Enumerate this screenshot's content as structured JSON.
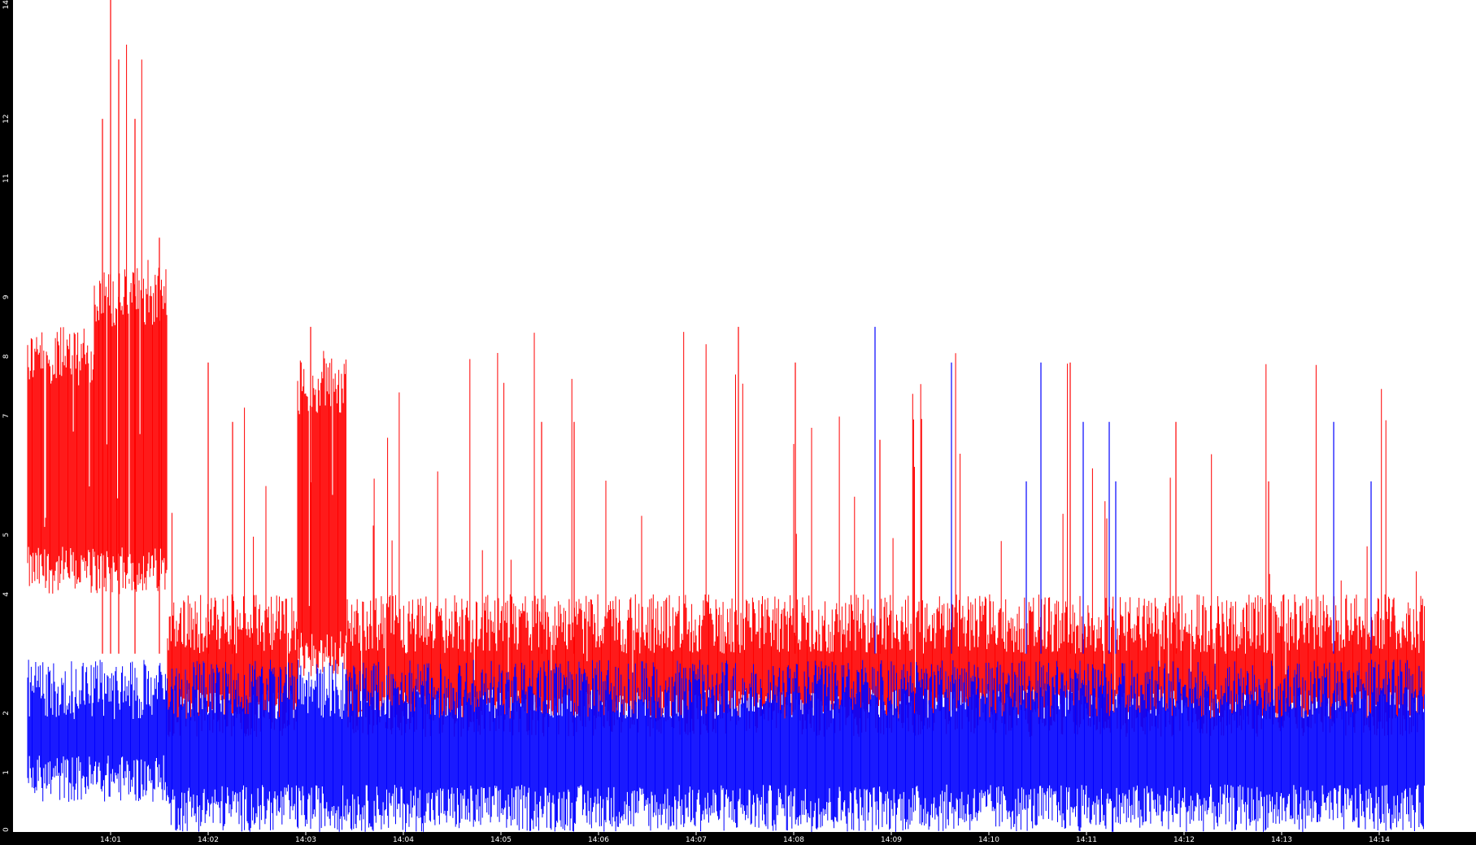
{
  "colors": {
    "background": "#ffffff",
    "frame": "#000000",
    "tick_text": "#ffffff",
    "series_red": "#ff0000",
    "series_blue": "#0000ff"
  },
  "chart_data": {
    "type": "line",
    "title": "",
    "xlabel": "",
    "ylabel": "",
    "grid": false,
    "legend": "none",
    "x_axis": {
      "ticks": [
        "14:01",
        "14:02",
        "14:03",
        "14:04",
        "14:05",
        "14:06",
        "14:07",
        "14:08",
        "14:09",
        "14:10",
        "14:11",
        "14:12",
        "14:13",
        "14:14"
      ],
      "range_minutes": [
        "14:00:09",
        "14:14:28"
      ]
    },
    "y_axis": {
      "ticks": [
        0,
        1,
        2,
        4,
        5,
        7,
        8,
        9,
        11,
        12,
        14
      ],
      "ylim": [
        0,
        14
      ]
    },
    "series": [
      {
        "color": "#ff0000",
        "description_values": "oscillating samples, approx one value every 1.3 s",
        "levels": [
          {
            "from": "14:00:09",
            "to": "14:00:50",
            "min": 4,
            "max": 8.5,
            "peak": 8.5
          },
          {
            "from": "14:00:50",
            "to": "14:01:35",
            "min": 4,
            "max": 9.5,
            "peak": 14
          },
          {
            "from": "14:01:35",
            "to": "14:02:55",
            "min": 1.6,
            "max": 4,
            "peak": 7.9
          },
          {
            "from": "14:02:55",
            "to": "14:03:25",
            "min": 2.6,
            "max": 8,
            "peak": 8.5
          },
          {
            "from": "14:03:25",
            "to": "14:14:28",
            "min": 1.6,
            "max": 4,
            "peak": 8.5
          }
        ],
        "spikes": [
          {
            "x": "14:01:00",
            "y": 14
          },
          {
            "x": "14:01:05",
            "y": 13
          },
          {
            "x": "14:00:55",
            "y": 12
          },
          {
            "x": "14:01:15",
            "y": 12
          },
          {
            "x": "14:01:30",
            "y": 10
          },
          {
            "x": "14:02:00",
            "y": 7.9
          },
          {
            "x": "14:02:15",
            "y": 6.9
          },
          {
            "x": "14:03:03",
            "y": 8.5
          },
          {
            "x": "14:05:25",
            "y": 6.9
          },
          {
            "x": "14:05:45",
            "y": 6.9
          },
          {
            "x": "14:07:26",
            "y": 8.5
          },
          {
            "x": "14:08:01",
            "y": 7.9
          },
          {
            "x": "14:08:53",
            "y": 6.6
          },
          {
            "x": "14:10:50",
            "y": 7.9
          },
          {
            "x": "14:11:55",
            "y": 6.9
          },
          {
            "x": "14:12:52",
            "y": 5.9
          }
        ]
      },
      {
        "color": "#0000ff",
        "description_values": "oscillating samples, approx one value every 1.3 s",
        "levels": [
          {
            "from": "14:00:09",
            "to": "14:01:35",
            "min": 0.5,
            "max": 2.9
          },
          {
            "from": "14:01:35",
            "to": "14:14:28",
            "min": 0,
            "max": 2.9
          }
        ],
        "spikes": [
          {
            "x": "14:08:50",
            "y": 8.5
          },
          {
            "x": "14:09:37",
            "y": 7.9
          },
          {
            "x": "14:10:32",
            "y": 7.9
          },
          {
            "x": "14:10:58",
            "y": 6.9
          },
          {
            "x": "14:11:14",
            "y": 6.9
          },
          {
            "x": "14:13:32",
            "y": 6.9
          },
          {
            "x": "14:10:23",
            "y": 5.9
          },
          {
            "x": "14:11:18",
            "y": 5.9
          },
          {
            "x": "14:13:55",
            "y": 5.9
          }
        ]
      }
    ]
  }
}
